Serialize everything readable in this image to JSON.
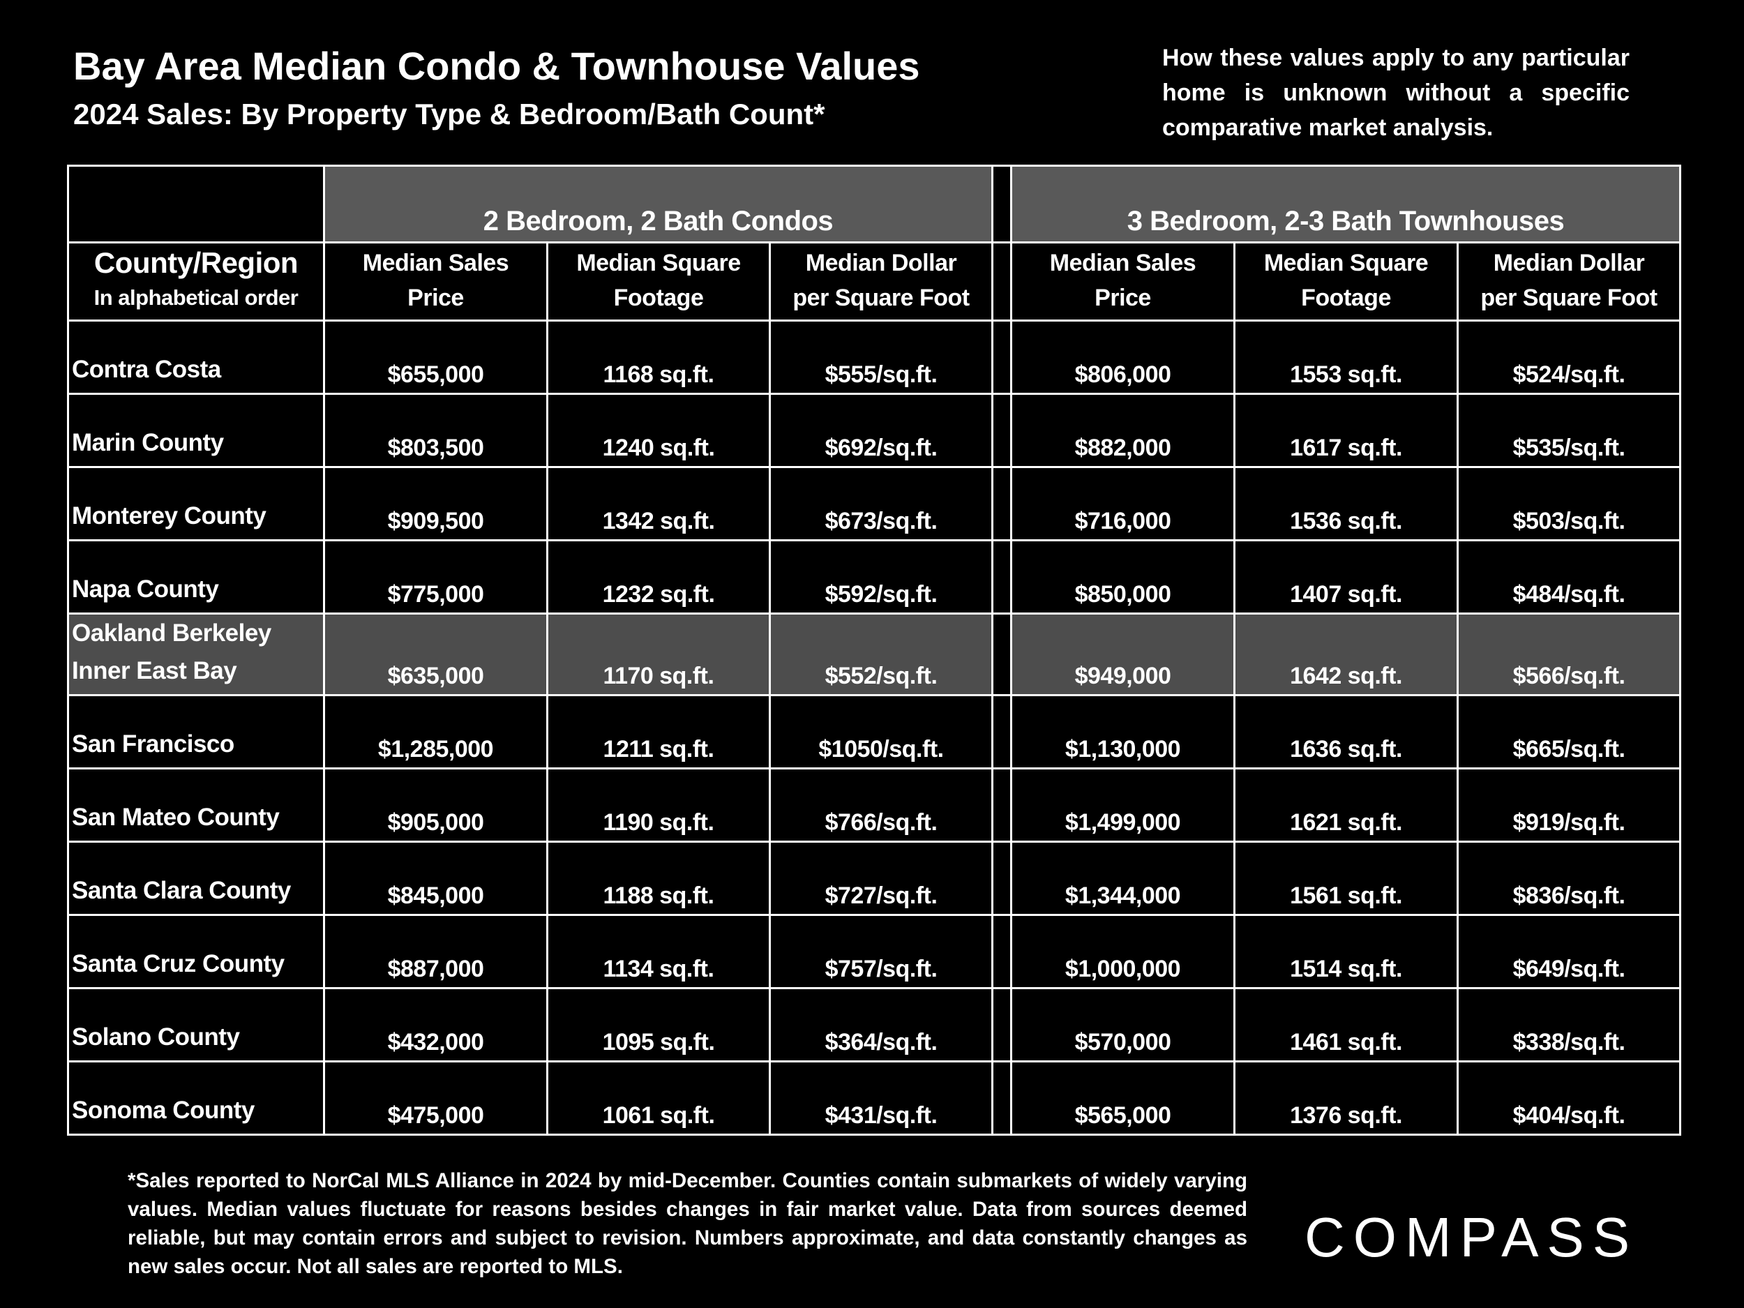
{
  "header": {
    "title": "Bay Area Median Condo & Townhouse Values",
    "subtitle": "2024 Sales:  By Property Type & Bedroom/Bath Count*",
    "disclaimer": "How these values apply to any particular home is unknown without a specific comparative market analysis."
  },
  "table": {
    "group_headers": [
      "2 Bedroom, 2 Bath Condos",
      "3 Bedroom, 2-3 Bath Townhouses"
    ],
    "column_headers": [
      [
        "County/Region",
        "In alphabetical order"
      ],
      [
        "Median Sales",
        "Price"
      ],
      [
        "Median Square",
        "Footage"
      ],
      [
        "Median Dollar",
        "per Square Foot"
      ],
      [
        "Median Sales",
        "Price"
      ],
      [
        "Median Square",
        "Footage"
      ],
      [
        "Median Dollar",
        "per Square Foot"
      ]
    ],
    "rows": [
      [
        "Contra Costa",
        "$655,000",
        "1168 sq.ft.",
        "$555/sq.ft.",
        "$806,000",
        "1553 sq.ft.",
        "$524/sq.ft."
      ],
      [
        "Marin County",
        "$803,500",
        "1240 sq.ft.",
        "$692/sq.ft.",
        "$882,000",
        "1617 sq.ft.",
        "$535/sq.ft."
      ],
      [
        "Monterey County",
        "$909,500",
        "1342 sq.ft.",
        "$673/sq.ft.",
        "$716,000",
        "1536 sq.ft.",
        "$503/sq.ft."
      ],
      [
        "Napa County",
        "$775,000",
        "1232 sq.ft.",
        "$592/sq.ft.",
        "$850,000",
        "1407 sq.ft.",
        "$484/sq.ft."
      ],
      [
        "Oakland Berkeley Inner East Bay",
        "$635,000",
        "1170 sq.ft.",
        "$552/sq.ft.",
        "$949,000",
        "1642 sq.ft.",
        "$566/sq.ft."
      ],
      [
        "San Francisco",
        "$1,285,000",
        "1211 sq.ft.",
        "$1050/sq.ft.",
        "$1,130,000",
        "1636 sq.ft.",
        "$665/sq.ft."
      ],
      [
        "San Mateo County",
        "$905,000",
        "1190 sq.ft.",
        "$766/sq.ft.",
        "$1,499,000",
        "1621 sq.ft.",
        "$919/sq.ft."
      ],
      [
        "Santa Clara County",
        "$845,000",
        "1188 sq.ft.",
        "$727/sq.ft.",
        "$1,344,000",
        "1561 sq.ft.",
        "$836/sq.ft."
      ],
      [
        "Santa Cruz County",
        "$887,000",
        "1134 sq.ft.",
        "$757/sq.ft.",
        "$1,000,000",
        "1514 sq.ft.",
        "$649/sq.ft."
      ],
      [
        "Solano County",
        "$432,000",
        "1095 sq.ft.",
        "$364/sq.ft.",
        "$570,000",
        "1461 sq.ft.",
        "$338/sq.ft."
      ],
      [
        "Sonoma County",
        "$475,000",
        "1061 sq.ft.",
        "$431/sq.ft.",
        "$565,000",
        "1376 sq.ft.",
        "$404/sq.ft."
      ]
    ],
    "highlight_row": 4
  },
  "footnote": "*Sales reported to NorCal MLS Alliance in 2024 by mid-December. Counties contain submarkets of widely varying values. Median values fluctuate for reasons besides changes in fair market value. Data from sources deemed reliable, but may contain errors and subject to revision.  Numbers approximate, and data constantly changes as new sales occur. Not all sales are reported to MLS.",
  "logo": "COMPASS"
}
